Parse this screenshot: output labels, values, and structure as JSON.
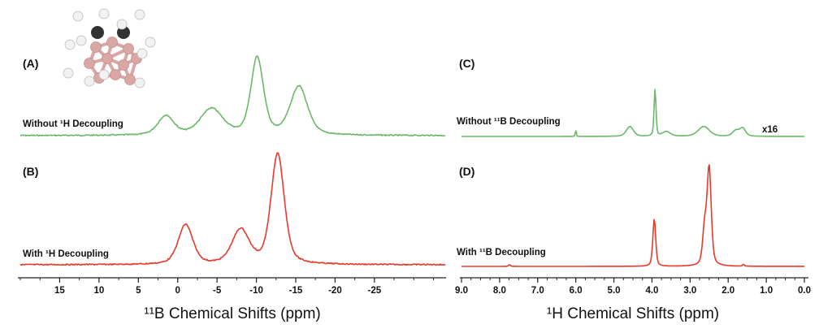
{
  "chart_data": [
    {
      "type": "line",
      "panel": "(A)",
      "label": "Without ¹H Decoupling",
      "nucleus_axis": "left",
      "color": "#6cb868",
      "peaks_ppm": [
        1.5,
        -4.3,
        -10.1,
        -15.4
      ],
      "relative_intensity": [
        25,
        34,
        100,
        63
      ],
      "fwhm_ppm": [
        2.4,
        3.4,
        1.9,
        2.6
      ]
    },
    {
      "type": "line",
      "panel": "(B)",
      "label": "With ¹H Decoupling",
      "nucleus_axis": "left",
      "color": "#e8392c",
      "peaks_ppm": [
        -1.0,
        -8.0,
        -12.7
      ],
      "relative_intensity": [
        36,
        31,
        100
      ],
      "fwhm_ppm": [
        2.2,
        2.6,
        2.0
      ]
    },
    {
      "type": "line",
      "panel": "(C)",
      "label": "Without ¹¹B Decoupling",
      "annotation": "x16",
      "nucleus_axis": "right",
      "color": "#6cb868",
      "peaks_ppm": [
        6.0,
        4.58,
        3.92,
        3.62,
        2.64,
        1.8,
        1.62
      ],
      "relative_intensity": [
        14,
        21,
        100,
        10,
        21,
        12,
        17
      ],
      "fwhm_ppm": [
        0.03,
        0.22,
        0.06,
        0.25,
        0.35,
        0.2,
        0.18
      ]
    },
    {
      "type": "line",
      "panel": "(D)",
      "label": "With ¹¹B Decoupling",
      "nucleus_axis": "right",
      "color": "#e8392c",
      "peaks_ppm": [
        7.74,
        3.94,
        2.62,
        2.5,
        1.6
      ],
      "relative_intensity": [
        1.5,
        41,
        30,
        85,
        1.5
      ],
      "fwhm_ppm": [
        0.06,
        0.09,
        0.12,
        0.13,
        0.06
      ]
    }
  ],
  "axes": {
    "left": {
      "title": "¹¹B Chemical Shifts (ppm)",
      "xlim": [
        20,
        -34
      ],
      "ticks": [
        15,
        10,
        5,
        0,
        -5,
        -10,
        -15,
        -20,
        -25
      ],
      "tick_labels": [
        "15",
        "10",
        "5",
        "0",
        "-5",
        "-10",
        "-15",
        "-20",
        "-25"
      ],
      "reversed": true
    },
    "right": {
      "title": "¹H Chemical Shifts (ppm)",
      "xlim": [
        9.0,
        0.0
      ],
      "ticks": [
        9,
        8,
        7,
        6,
        5,
        4,
        3,
        2,
        1,
        0
      ],
      "tick_labels": [
        "9.0",
        "8.0",
        "7.0",
        "6.0",
        "5.0",
        "4.0",
        "3.0",
        "2.0",
        "1.0",
        "0.0"
      ],
      "reversed": true
    }
  },
  "molecule_colors": {
    "boron": "#d9a8a4",
    "carbon": "#333333",
    "hydrogen": "#f2f2f2"
  }
}
